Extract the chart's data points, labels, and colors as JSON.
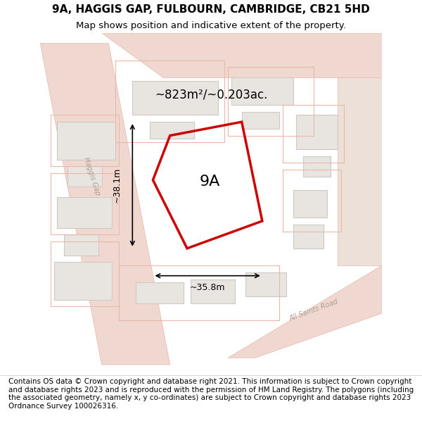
{
  "title": "9A, HAGGIS GAP, FULBOURN, CAMBRIDGE, CB21 5HD",
  "subtitle": "Map shows position and indicative extent of the property.",
  "footer": "Contains OS data © Crown copyright and database right 2021. This information is subject to Crown copyright and database rights 2023 and is reproduced with the permission of HM Land Registry. The polygons (including the associated geometry, namely x, y co-ordinates) are subject to Crown copyright and database rights 2023 Ordnance Survey 100026316.",
  "area_label": "~823m²/~0.203ac.",
  "width_label": "~35.8m",
  "height_label": "~38.1m",
  "plot_label": "9A",
  "map_bg": "#f7f4f2",
  "road_color": "#f0d8d0",
  "road_stroke": "#e8b8a8",
  "building_fill": "#e8e4e0",
  "building_stroke": "#d0c8c4",
  "plot_stroke": "#cc0000",
  "text_color": "#000000",
  "road_label_color": "#aaa090",
  "title_fontsize": 11,
  "subtitle_fontsize": 9.5,
  "footer_fontsize": 7.5
}
